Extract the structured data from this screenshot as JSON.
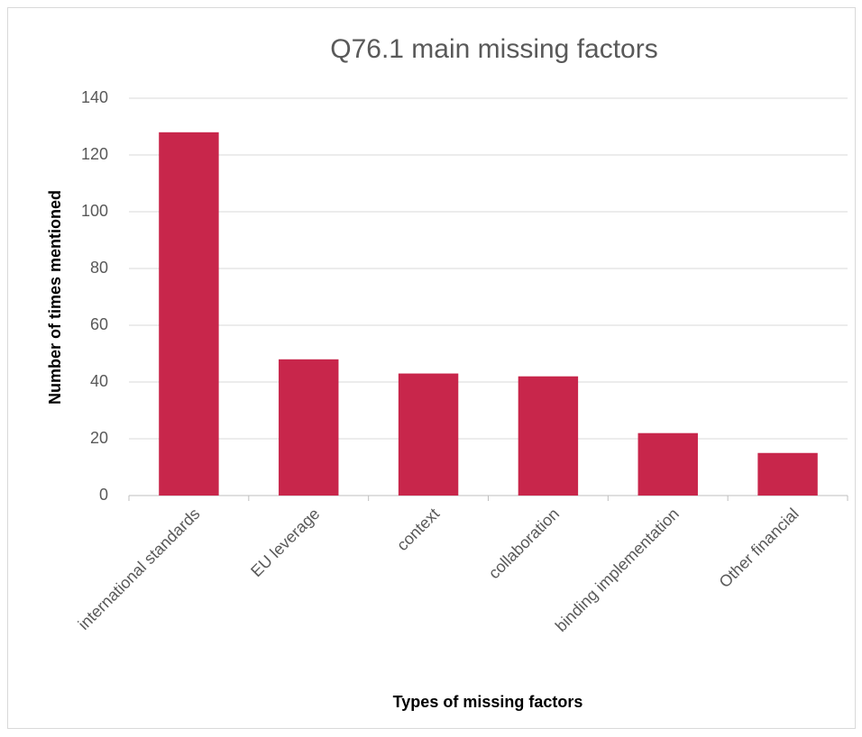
{
  "chart_data": {
    "type": "bar",
    "title": "Q76.1 main missing factors",
    "x_label": "Types of missing factors",
    "y_label": "Number of  times mentioned",
    "categories": [
      "international standards",
      "EU leverage",
      "context",
      "collaboration",
      "binding implementation",
      "Other financial"
    ],
    "values": [
      128,
      48,
      43,
      42,
      22,
      15
    ],
    "color": "#c8264b",
    "ylim": [
      0,
      140
    ],
    "yticks": [
      0,
      20,
      40,
      60,
      80,
      100,
      120,
      140
    ],
    "grid": true
  }
}
